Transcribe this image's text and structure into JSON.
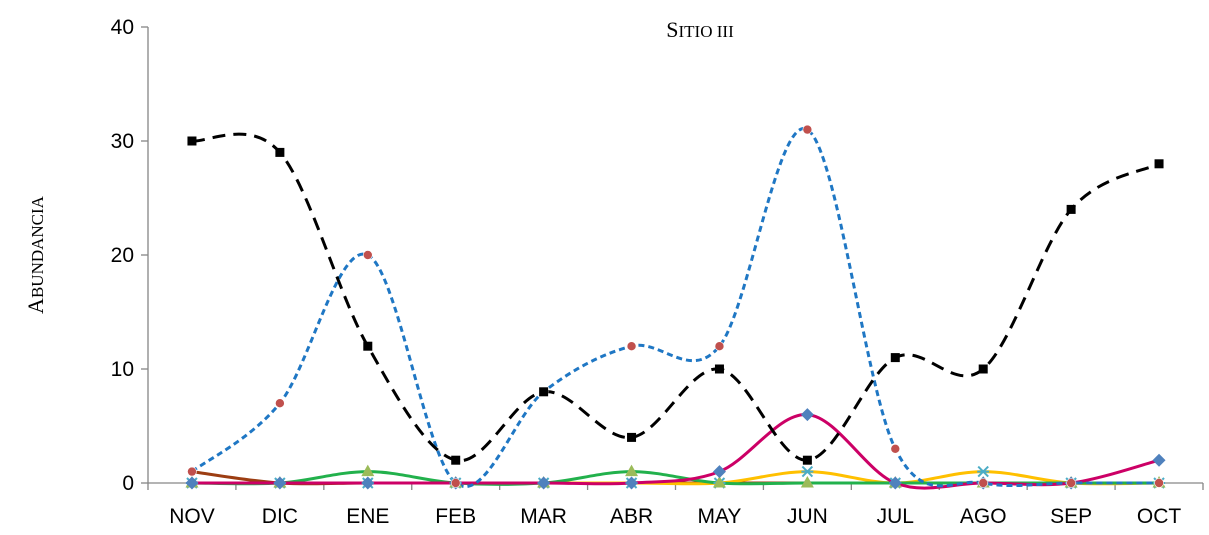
{
  "chart_data": {
    "type": "line",
    "title": "SITIO III",
    "title_first": "S",
    "title_rest": "ITIO III",
    "ylabel": "ABUNDANCIA",
    "ylabel_first": "A",
    "ylabel_rest": "BUNDANCIA",
    "xlabel": "",
    "categories": [
      "NOV",
      "DIC",
      "ENE",
      "FEB",
      "MAR",
      "ABR",
      "MAY",
      "JUN",
      "JUL",
      "AGO",
      "SEP",
      "OCT"
    ],
    "ylim": [
      0,
      40
    ],
    "yticks": [
      "0",
      "10",
      "20",
      "30",
      "40"
    ],
    "grid": false,
    "legend": false,
    "series": [
      {
        "values": [
          30,
          29,
          12,
          2,
          8,
          4,
          10,
          2,
          11,
          10,
          24,
          28
        ],
        "color": "#000000",
        "line": "dashed-long",
        "marker": "square",
        "marker_color": "#000000"
      },
      {
        "values": [
          1,
          7,
          20,
          0,
          8,
          12,
          12,
          31,
          3,
          0,
          0,
          0
        ],
        "color": "#1f77c4",
        "line": "dashed-short",
        "marker": "circle",
        "marker_color": "#c0504d"
      },
      {
        "values": [
          0,
          0,
          0,
          0,
          0,
          0,
          1,
          6,
          0,
          0,
          0,
          2
        ],
        "color": "#cc0066",
        "line": "solid",
        "marker": "diamond",
        "marker_color": "#4f81bd"
      },
      {
        "values": [
          0,
          0,
          1,
          0,
          0,
          1,
          0,
          0,
          0,
          0,
          0,
          0
        ],
        "color": "#22b14c",
        "line": "solid",
        "marker": "triangle",
        "marker_color": "#9bbb59"
      },
      {
        "values": [
          0,
          0,
          0,
          0,
          0,
          0,
          0,
          1,
          0,
          1,
          0,
          0
        ],
        "color": "#ffc000",
        "line": "solid",
        "marker": "x",
        "marker_color": "#4bacc6"
      },
      {
        "values": [
          1,
          0,
          0,
          0,
          0,
          0,
          0,
          0,
          0,
          0,
          0,
          0
        ],
        "color": "#9c3d12",
        "line": "solid",
        "marker": "circle-small",
        "marker_color": "#8064a2"
      }
    ]
  }
}
